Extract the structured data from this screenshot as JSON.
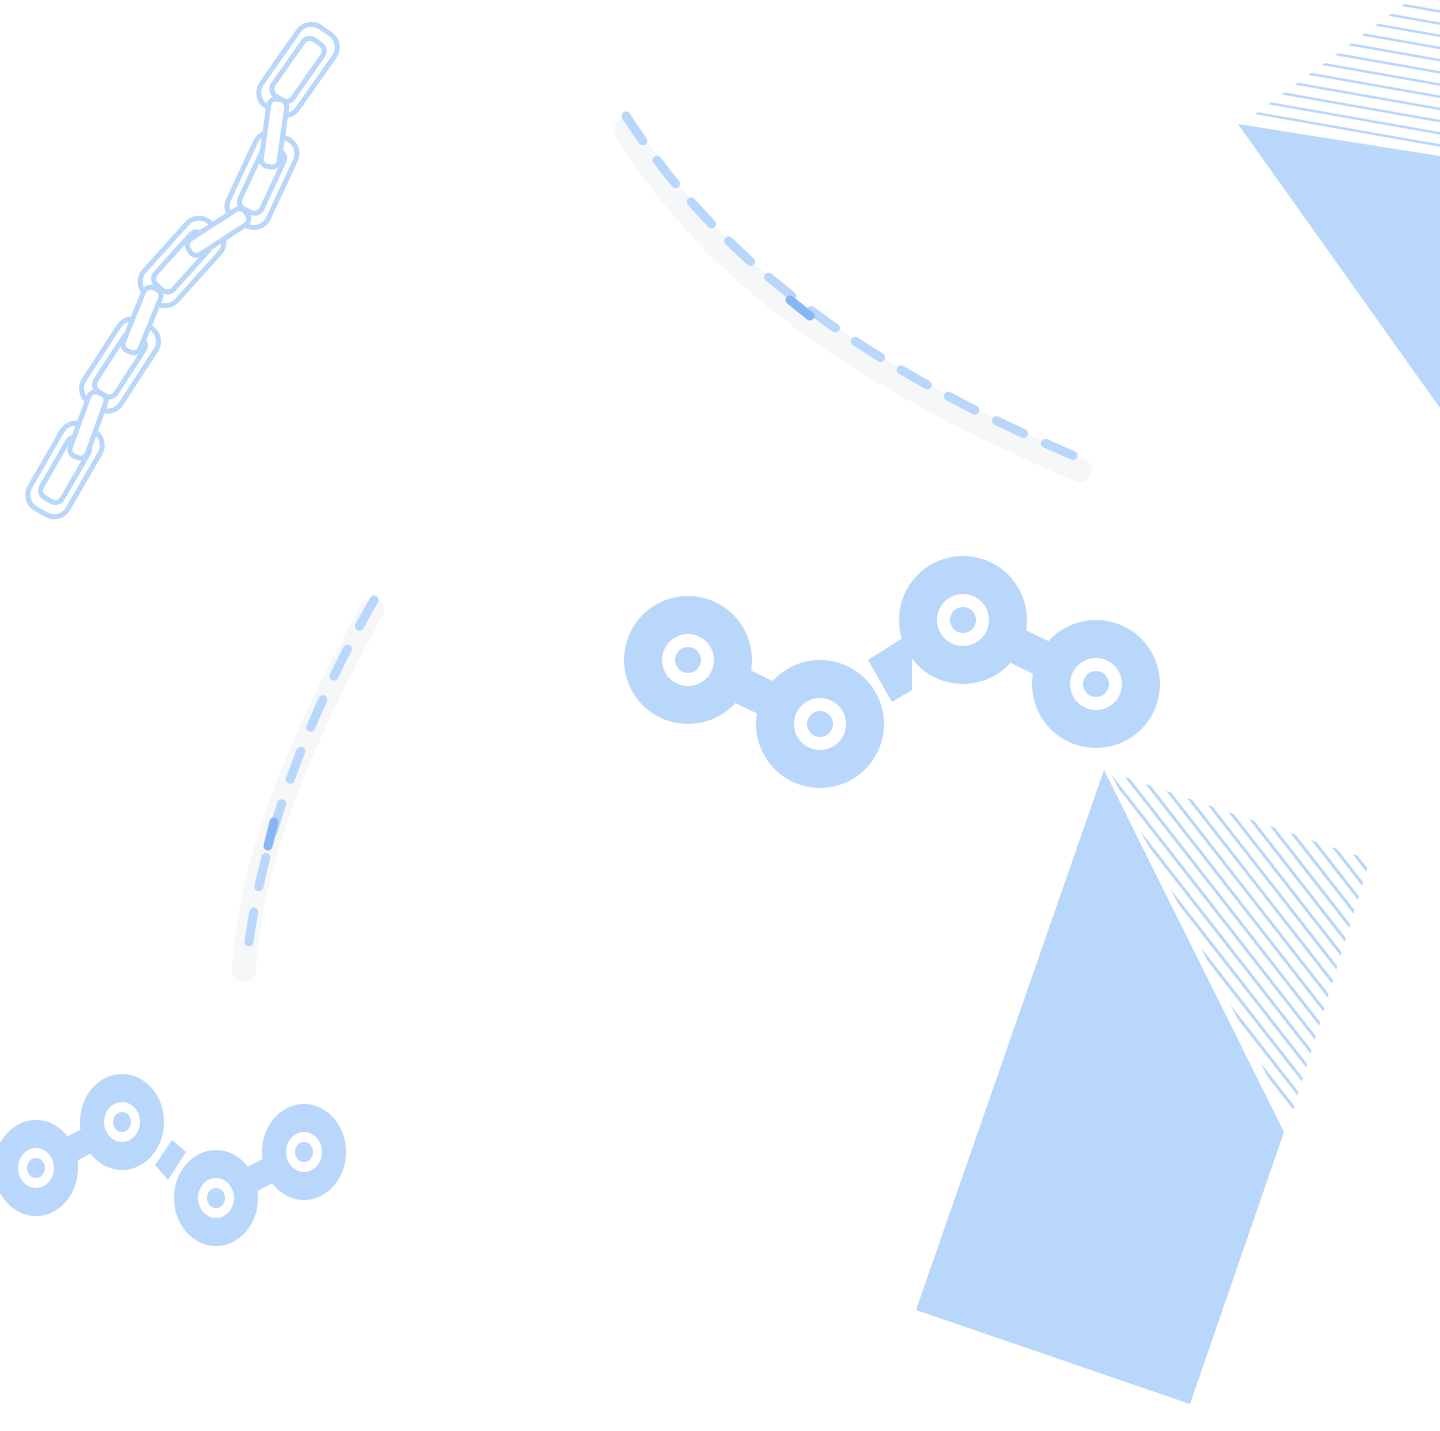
{
  "colors": {
    "background": "#ffffff",
    "primary": "#b9d6fb",
    "accent": "#86b7f4",
    "shadow": "#f6f7f9"
  },
  "illustrations": [
    {
      "name": "chain-links-icon"
    },
    {
      "name": "dashed-path-icon"
    },
    {
      "name": "roller-chain-icon"
    },
    {
      "name": "striped-shard-icon"
    }
  ]
}
